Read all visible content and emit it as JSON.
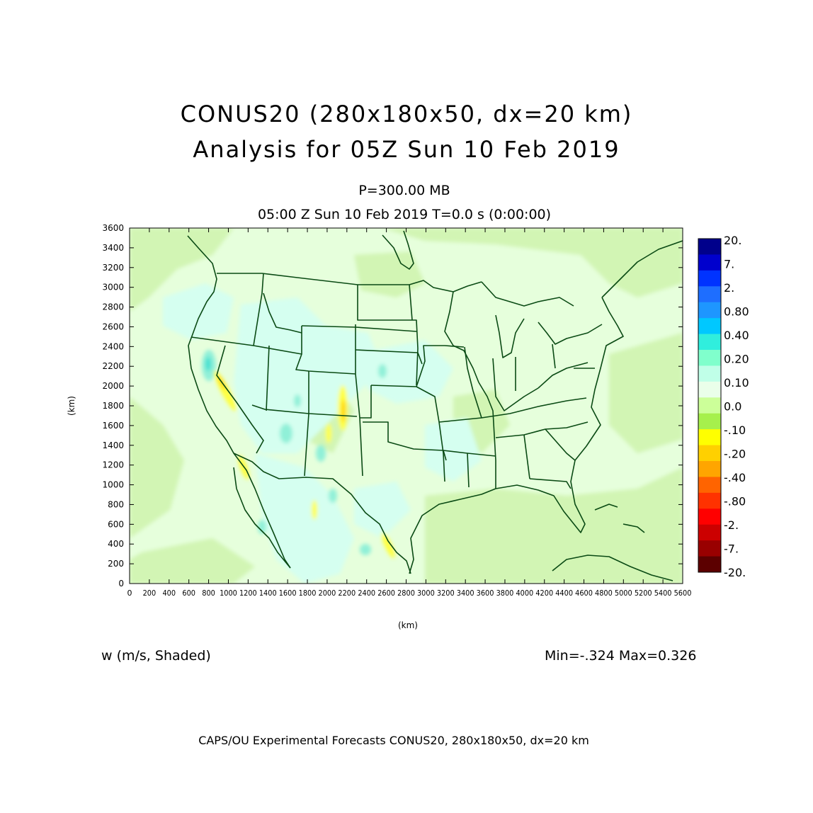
{
  "title": {
    "line1": "CONUS20 (280x180x50, dx=20 km)",
    "line2": "Analysis for 05Z Sun 10 Feb 2019"
  },
  "subtitle": {
    "level": "P=300.00 MB",
    "time": "05:00 Z Sun 10 Feb 2019    T=0.0 s (0:00:00)"
  },
  "axes": {
    "x_label": "(km)",
    "y_label": "(km)",
    "x_range": [
      0,
      5600
    ],
    "y_range": [
      0,
      3600
    ],
    "x_ticks": [
      0,
      200,
      400,
      600,
      800,
      1000,
      1200,
      1400,
      1600,
      1800,
      2000,
      2200,
      2400,
      2600,
      2800,
      3000,
      3200,
      3400,
      3600,
      3800,
      4000,
      4200,
      4400,
      4600,
      4800,
      5000,
      5200,
      5400,
      5600
    ],
    "y_ticks": [
      0,
      200,
      400,
      600,
      800,
      1000,
      1200,
      1400,
      1600,
      1800,
      2000,
      2200,
      2400,
      2600,
      2800,
      3000,
      3200,
      3400,
      3600
    ]
  },
  "colorbar": {
    "labels": [
      "20.",
      "7.",
      "2.",
      "0.80",
      "0.40",
      "0.20",
      "0.10",
      "0.0",
      "-.10",
      "-.20",
      "-.40",
      "-.80",
      "-2.",
      "-7.",
      "-20."
    ],
    "colors": [
      "#00008b",
      "#0000cd",
      "#0033ff",
      "#1e6eff",
      "#1e96ff",
      "#00c8ff",
      "#30eedd",
      "#80ffcc",
      "#c0ffe8",
      "#eaffea",
      "#ccff99",
      "#a6f04c",
      "#ffff00",
      "#ffd000",
      "#ffa500",
      "#ff6400",
      "#ff3200",
      "#ff0000",
      "#cc0000",
      "#990000",
      "#5c0000"
    ]
  },
  "field": {
    "variable": "w (m/s, Shaded)",
    "minmax": "Min=-.324  Max=0.326",
    "colors": {
      "background": "#e6ffdc",
      "weak_negative": "#d2f5b4",
      "weak_positive": "#d5fff0",
      "positive": "#90f0d8",
      "strong_positive": "#40e0d0",
      "negative": "#ffff40",
      "strong_negative": "#ffd000",
      "boundary": "#0a4a14"
    }
  },
  "footer": "CAPS/OU Experimental Forecasts  CONUS20, 280x180x50, dx=20 km"
}
